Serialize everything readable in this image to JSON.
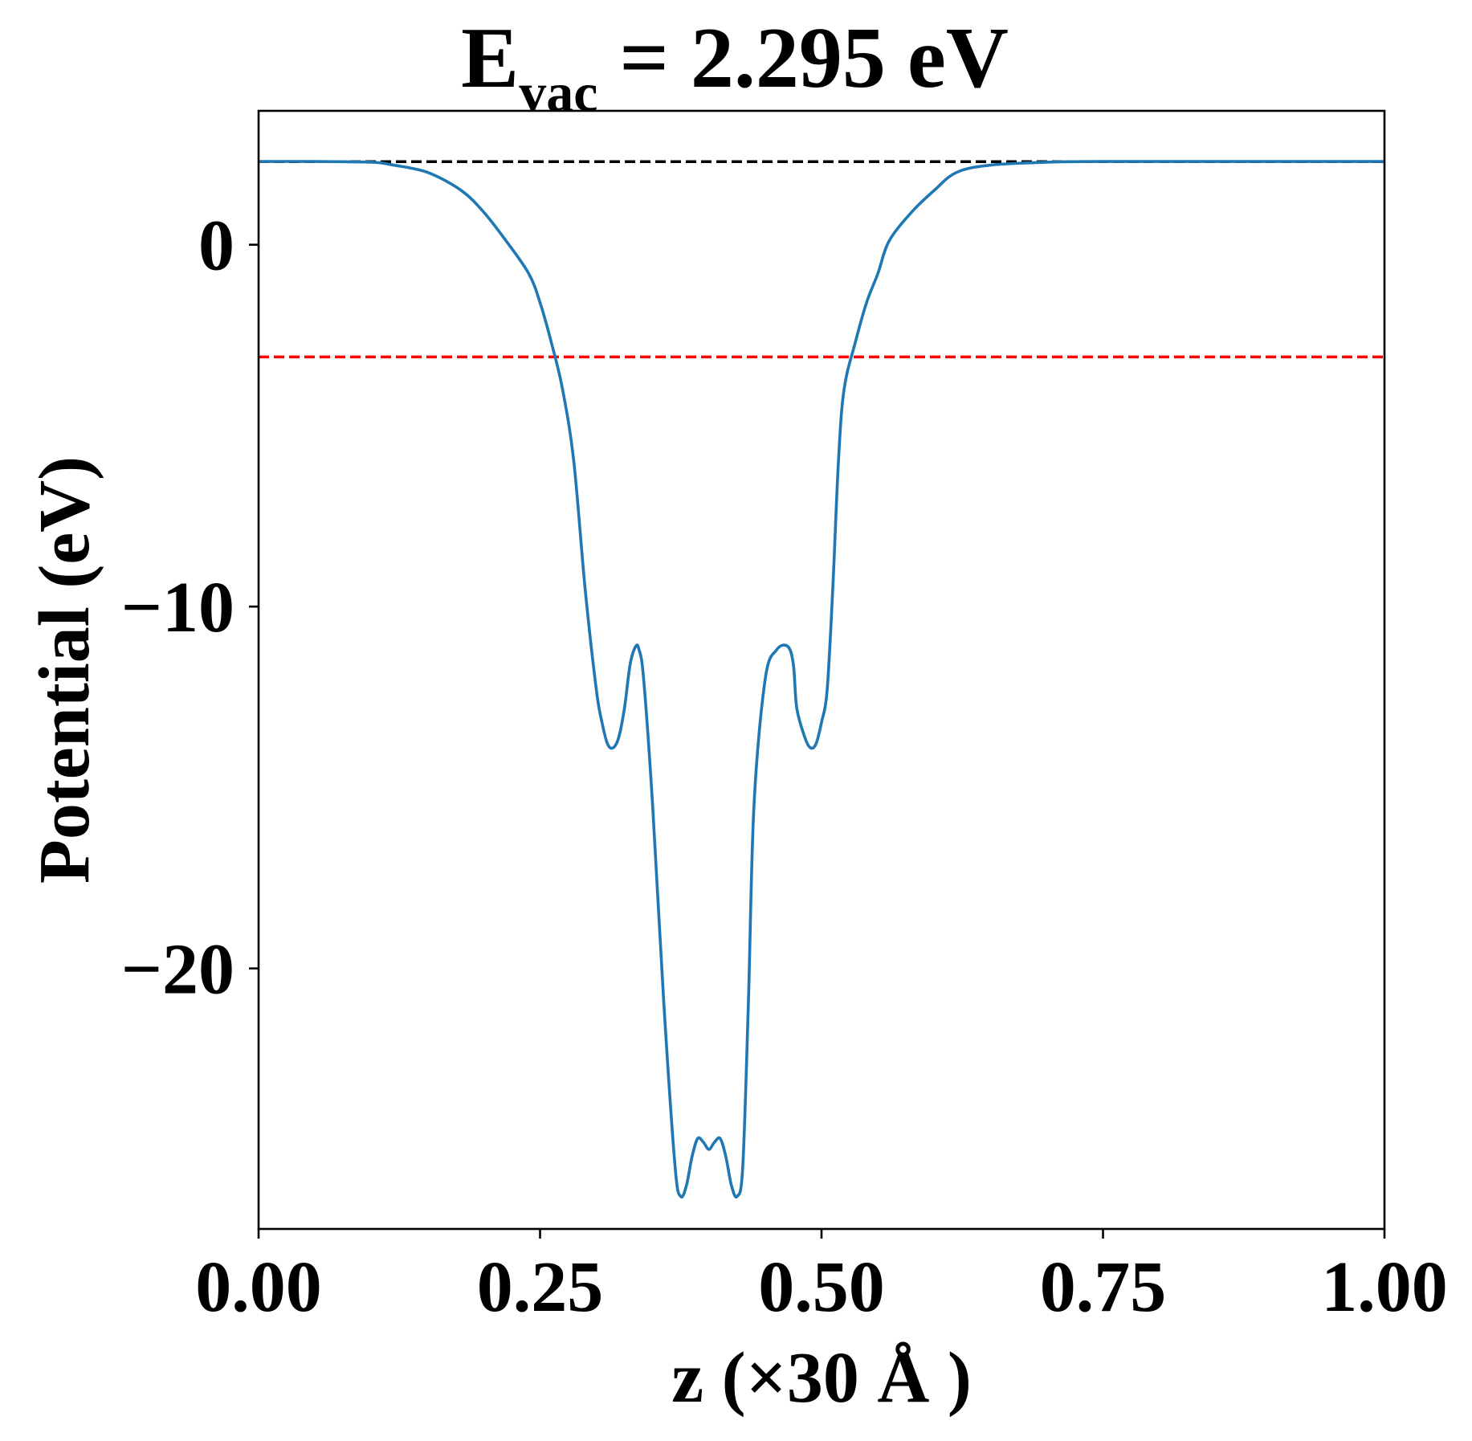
{
  "chart_data": {
    "type": "line",
    "title": {
      "main": "E",
      "sub": "vac",
      "rest": " = 2.295 eV"
    },
    "xlabel": "z (×30 Å )",
    "ylabel": "Potential (eV)",
    "xlim": [
      0,
      1
    ],
    "ylim": [
      -27.2,
      3.7
    ],
    "xticks": [
      {
        "value": 0.0,
        "label": "0.00"
      },
      {
        "value": 0.25,
        "label": "0.25"
      },
      {
        "value": 0.5,
        "label": "0.50"
      },
      {
        "value": 0.75,
        "label": "0.75"
      },
      {
        "value": 1.0,
        "label": "1.00"
      }
    ],
    "yticks": [
      {
        "value": 0,
        "label": "0"
      },
      {
        "value": -10,
        "label": "−10"
      },
      {
        "value": -20,
        "label": "−20"
      }
    ],
    "grid": false,
    "reference_lines": [
      {
        "y": 2.295,
        "color": "#000000",
        "style": "dashed"
      },
      {
        "y": -3.1,
        "color": "#ff0000",
        "style": "dashed"
      }
    ],
    "series": [
      {
        "color": "#1f77b4",
        "x": [
          0.0,
          0.05,
          0.1,
          0.12,
          0.15,
          0.18,
          0.2,
          0.22,
          0.24,
          0.25,
          0.26,
          0.27,
          0.28,
          0.29,
          0.3,
          0.305,
          0.31,
          0.315,
          0.32,
          0.325,
          0.33,
          0.335,
          0.338,
          0.342,
          0.35,
          0.36,
          0.37,
          0.375,
          0.38,
          0.385,
          0.39,
          0.395,
          0.4,
          0.405,
          0.41,
          0.415,
          0.42,
          0.425,
          0.43,
          0.435,
          0.44,
          0.45,
          0.46,
          0.47,
          0.475,
          0.478,
          0.485,
          0.49,
          0.495,
          0.5,
          0.505,
          0.51,
          0.515,
          0.52,
          0.53,
          0.54,
          0.55,
          0.56,
          0.58,
          0.6,
          0.62,
          0.65,
          0.7,
          0.75,
          0.85,
          1.0
        ],
        "y": [
          2.3,
          2.3,
          2.28,
          2.2,
          2.0,
          1.5,
          0.9,
          0.1,
          -0.8,
          -1.6,
          -2.7,
          -4.0,
          -6.0,
          -9.5,
          -12.3,
          -13.2,
          -13.8,
          -13.9,
          -13.6,
          -12.8,
          -11.6,
          -11.1,
          -11.2,
          -12.0,
          -15.5,
          -21.0,
          -25.5,
          -26.3,
          -26.0,
          -25.2,
          -24.7,
          -24.8,
          -25.0,
          -24.8,
          -24.7,
          -25.2,
          -26.0,
          -26.3,
          -25.5,
          -21.0,
          -15.5,
          -12.0,
          -11.2,
          -11.1,
          -11.6,
          -12.8,
          -13.6,
          -13.9,
          -13.8,
          -13.2,
          -12.3,
          -9.5,
          -6.0,
          -4.0,
          -2.7,
          -1.6,
          -0.8,
          0.1,
          0.9,
          1.5,
          2.0,
          2.2,
          2.28,
          2.3,
          2.3,
          2.3
        ]
      }
    ]
  }
}
